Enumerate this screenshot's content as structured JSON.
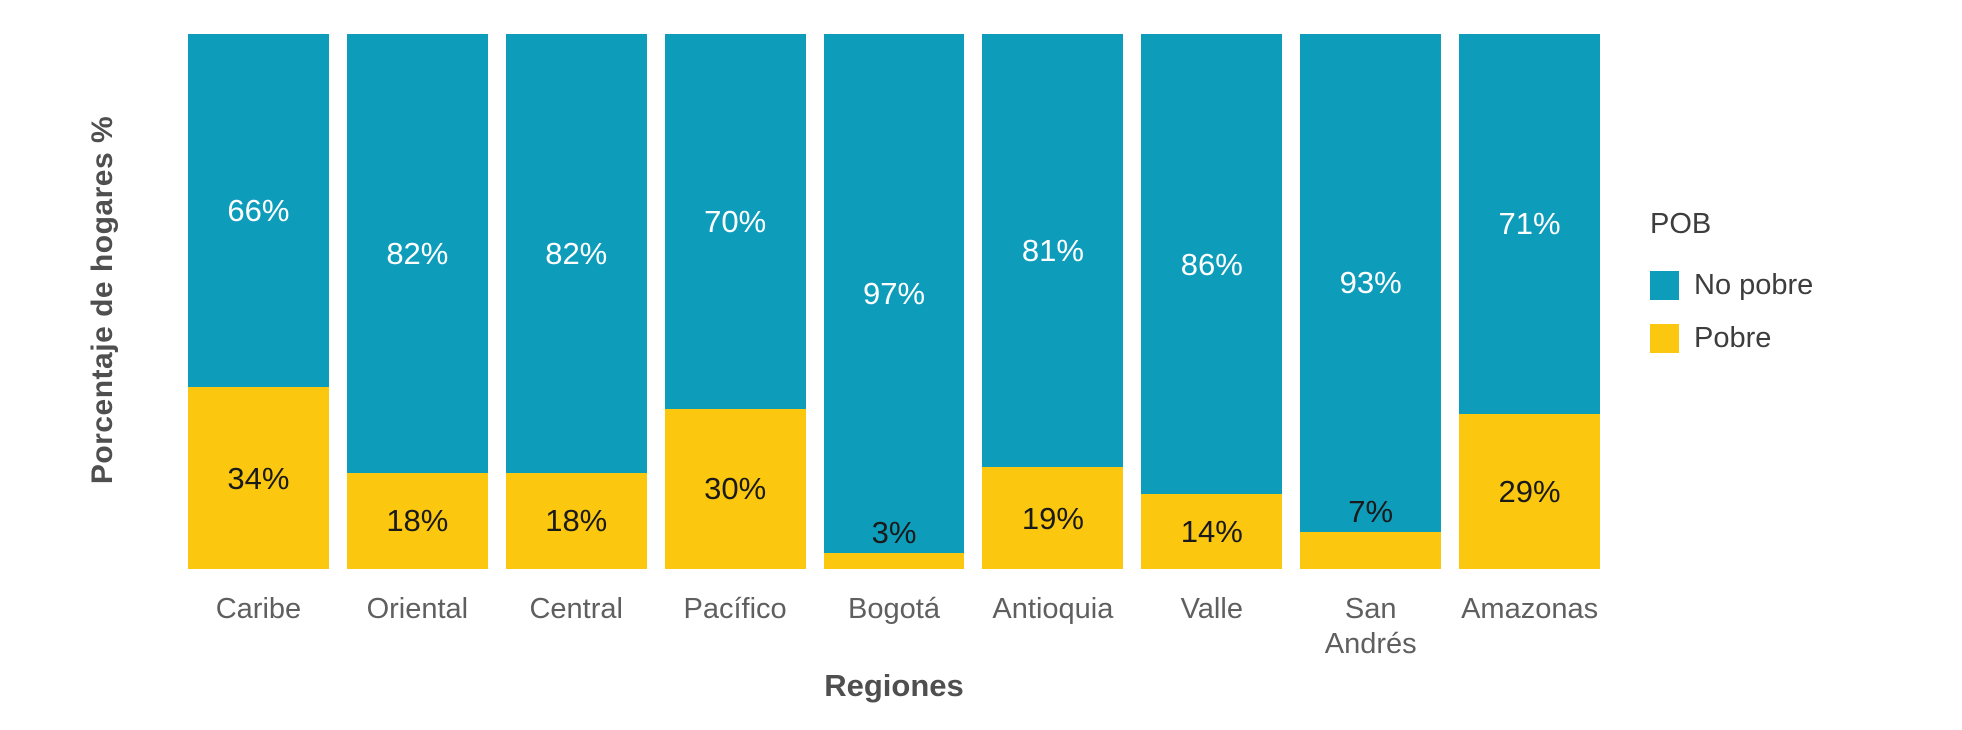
{
  "chart_data": {
    "type": "bar",
    "subtype": "stacked-100-percent",
    "title": "",
    "xlabel": "Regiones",
    "ylabel": "Porcentaje de hogares %",
    "legend_title": "POB",
    "legend_position": "right",
    "value_suffix": "%",
    "ylim": [
      0,
      100
    ],
    "grid": false,
    "categories": [
      "Caribe",
      "Oriental",
      "Central",
      "Pacífico",
      "Bogotá",
      "Antioquia",
      "Valle",
      "San Andrés",
      "Amazonas"
    ],
    "series": [
      {
        "name": "No pobre",
        "color": "#0d9dbb",
        "values": [
          66,
          82,
          82,
          70,
          97,
          81,
          86,
          93,
          71
        ]
      },
      {
        "name": "Pobre",
        "color": "#fbc70f",
        "values": [
          34,
          18,
          18,
          30,
          3,
          19,
          14,
          7,
          29
        ]
      }
    ]
  },
  "colors": {
    "no_pobre": "#0d9dbb",
    "pobre": "#fbc70f",
    "label_on_teal": "#ffffff",
    "label_on_yellow": "#1a1a1a",
    "axis_text": "#5f5f5f",
    "axis_title": "#4f4f4f"
  }
}
